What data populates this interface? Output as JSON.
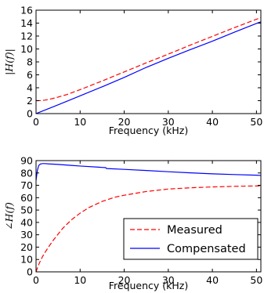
{
  "chart_data": [
    {
      "type": "line",
      "xlabel": "Frequency (kHz)",
      "ylabel": "|H(f)|",
      "xlim": [
        0,
        51
      ],
      "ylim": [
        0,
        16
      ],
      "xticks": [
        "0",
        "10",
        "20",
        "30",
        "40",
        "50"
      ],
      "yticks": [
        "0",
        "2",
        "4",
        "6",
        "8",
        "10",
        "12",
        "14",
        "16"
      ],
      "grid": false,
      "series": [
        {
          "name": "Measured",
          "color": "#ff0000",
          "dash": "dashed",
          "x": [
            0,
            1,
            2,
            3,
            5,
            7,
            10,
            15,
            20,
            25,
            30,
            35,
            40,
            45,
            50,
            51
          ],
          "y": [
            2.0,
            2.02,
            2.08,
            2.2,
            2.55,
            2.95,
            3.7,
            5.05,
            6.45,
            7.85,
            9.2,
            10.6,
            11.95,
            13.3,
            14.6,
            14.85
          ]
        },
        {
          "name": "Compensated",
          "color": "#0000ff",
          "dash": "solid",
          "x": [
            0,
            5,
            10,
            15,
            20,
            25,
            30,
            35,
            40,
            45,
            50,
            51
          ],
          "y": [
            0.0,
            1.35,
            2.75,
            4.15,
            5.6,
            7.15,
            8.55,
            9.9,
            11.2,
            12.6,
            13.95,
            14.2
          ]
        }
      ]
    },
    {
      "type": "line",
      "xlabel": "Frequency (kHz)",
      "ylabel": "∠H(f)",
      "xlim": [
        0,
        51
      ],
      "ylim": [
        0,
        90
      ],
      "xticks": [
        "0",
        "10",
        "20",
        "30",
        "40",
        "50"
      ],
      "yticks": [
        "0",
        "10",
        "20",
        "30",
        "40",
        "50",
        "60",
        "70",
        "80",
        "90"
      ],
      "grid": false,
      "legend": {
        "placement": "lower-right",
        "entries": [
          "Measured",
          "Compensated"
        ]
      },
      "series": [
        {
          "name": "Measured",
          "color": "#ff0000",
          "dash": "dashed",
          "x": [
            0,
            0.5,
            1,
            1.5,
            2,
            3,
            4,
            5,
            6,
            8,
            10,
            12,
            15,
            18,
            20,
            25,
            30,
            35,
            40,
            45,
            50,
            51
          ],
          "y": [
            0,
            5,
            9,
            12.5,
            15.5,
            21,
            26,
            30.5,
            35,
            42,
            47.5,
            52,
            57,
            60.5,
            62,
            65,
            67,
            68,
            68.7,
            69.2,
            69.5,
            69.6
          ]
        },
        {
          "name": "Compensated",
          "color": "#0000ff",
          "dash": "solid",
          "x": [
            0,
            0.3,
            0.6,
            1.0,
            1.5,
            2,
            3,
            5,
            8,
            10,
            15,
            15.8,
            16,
            20,
            25,
            30,
            35,
            40,
            45,
            50,
            51
          ],
          "y": [
            74,
            82,
            86,
            87.3,
            87.6,
            87.6,
            87.3,
            86.9,
            86.1,
            85.6,
            84.5,
            84.3,
            83.6,
            82.9,
            82,
            81,
            80.1,
            79.3,
            78.7,
            78.2,
            78
          ]
        }
      ]
    }
  ]
}
